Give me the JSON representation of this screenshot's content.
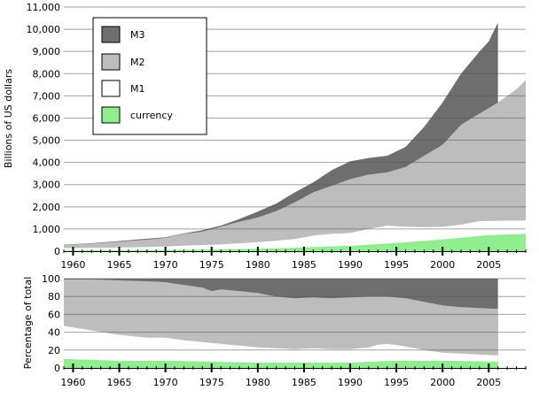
{
  "chart_data": [
    {
      "type": "area",
      "stacked": false,
      "ylabel": "Billions of US dollars",
      "xlim": [
        1959,
        2009
      ],
      "ylim": [
        0,
        11000
      ],
      "yticks": [
        0,
        1000,
        2000,
        3000,
        4000,
        5000,
        6000,
        7000,
        8000,
        9000,
        10000,
        11000
      ],
      "ytick_labels": [
        "0",
        "1,000",
        "2,000",
        "3,000",
        "4,000",
        "5,000",
        "6,000",
        "7,000",
        "8,000",
        "9,000",
        "10,000",
        "11,000"
      ],
      "xtick_labels": [
        "1960",
        "1965",
        "1970",
        "1975",
        "1980",
        "1985",
        "1990",
        "1995",
        "2000",
        "2005"
      ],
      "xticks": [
        1960,
        1965,
        1970,
        1975,
        1980,
        1985,
        1990,
        1995,
        2000,
        2005
      ],
      "grid": true,
      "legend": {
        "position": "top-left",
        "entries": [
          {
            "label": "M3",
            "color": "#6e6e6e"
          },
          {
            "label": "M2",
            "color": "#bdbdbd"
          },
          {
            "label": "M1",
            "color": "#ffffff"
          },
          {
            "label": "currency",
            "color": "#90ee90"
          }
        ]
      },
      "series": [
        {
          "name": "M3",
          "color": "#6e6e6e",
          "x": [
            1959,
            1962,
            1965,
            1968,
            1970,
            1972,
            1974,
            1976,
            1978,
            1980,
            1982,
            1984,
            1986,
            1988,
            1990,
            1992,
            1994,
            1996,
            1998,
            2000,
            2002,
            2004,
            2005,
            2006
          ],
          "values": [
            300,
            360,
            460,
            560,
            630,
            800,
            950,
            1150,
            1450,
            1780,
            2150,
            2650,
            3100,
            3650,
            4050,
            4200,
            4300,
            4700,
            5600,
            6700,
            8000,
            9000,
            9450,
            10300
          ]
        },
        {
          "name": "M2",
          "color": "#bdbdbd",
          "x": [
            1959,
            1962,
            1965,
            1968,
            1970,
            1972,
            1974,
            1976,
            1978,
            1980,
            1982,
            1984,
            1986,
            1988,
            1990,
            1992,
            1994,
            1996,
            1998,
            2000,
            2002,
            2004,
            2006,
            2008,
            2009
          ],
          "values": [
            290,
            340,
            430,
            520,
            600,
            780,
            880,
            1100,
            1330,
            1520,
            1810,
            2200,
            2650,
            2950,
            3250,
            3450,
            3550,
            3800,
            4300,
            4800,
            5700,
            6200,
            6700,
            7300,
            7700
          ]
        },
        {
          "name": "M1",
          "color": "#ffffff",
          "x": [
            1959,
            1962,
            1965,
            1968,
            1970,
            1972,
            1974,
            1976,
            1978,
            1980,
            1982,
            1984,
            1986,
            1988,
            1990,
            1992,
            1994,
            1996,
            1998,
            2000,
            2002,
            2004,
            2006,
            2008,
            2009
          ],
          "values": [
            140,
            150,
            165,
            190,
            215,
            250,
            275,
            305,
            355,
            405,
            470,
            550,
            700,
            780,
            820,
            1000,
            1150,
            1100,
            1080,
            1100,
            1200,
            1350,
            1370,
            1380,
            1380
          ]
        },
        {
          "name": "currency",
          "color": "#90ee90",
          "x": [
            1959,
            1965,
            1970,
            1975,
            1980,
            1985,
            1990,
            1995,
            2000,
            2005,
            2009
          ],
          "values": [
            30,
            40,
            50,
            75,
            110,
            170,
            245,
            370,
            530,
            720,
            780
          ]
        }
      ]
    },
    {
      "type": "area",
      "stacked": false,
      "ylabel": "Percentage of total",
      "xlim": [
        1959,
        2009
      ],
      "ylim": [
        0,
        100
      ],
      "yticks": [
        0,
        20,
        40,
        60,
        80,
        100
      ],
      "ytick_labels": [
        "0",
        "20",
        "40",
        "60",
        "80",
        "100"
      ],
      "xtick_labels": [
        "1960",
        "1965",
        "1970",
        "1975",
        "1980",
        "1985",
        "1990",
        "1995",
        "2000",
        "2005"
      ],
      "xticks": [
        1960,
        1965,
        1970,
        1975,
        1980,
        1985,
        1990,
        1995,
        2000,
        2005
      ],
      "grid": true,
      "series": [
        {
          "name": "M3",
          "color": "#6e6e6e",
          "x": [
            1959,
            2006
          ],
          "values": [
            100,
            100
          ]
        },
        {
          "name": "M2",
          "color": "#bdbdbd",
          "x": [
            1959,
            1962,
            1965,
            1968,
            1970,
            1972,
            1974,
            1975,
            1976,
            1978,
            1980,
            1982,
            1984,
            1986,
            1988,
            1990,
            1992,
            1994,
            1996,
            1998,
            2000,
            2002,
            2004,
            2006
          ],
          "values": [
            99,
            99,
            98,
            97,
            96,
            93,
            90,
            86,
            88,
            86,
            84,
            80,
            78,
            79,
            78,
            79,
            80,
            80,
            78,
            74,
            70,
            68,
            67,
            66
          ]
        },
        {
          "name": "M1",
          "color": "#ffffff",
          "x": [
            1959,
            1962,
            1965,
            1968,
            1970,
            1972,
            1974,
            1976,
            1978,
            1980,
            1982,
            1984,
            1986,
            1988,
            1990,
            1992,
            1993,
            1994,
            1996,
            1998,
            2000,
            2002,
            2004,
            2006
          ],
          "values": [
            47,
            42,
            37,
            34,
            34,
            31,
            29,
            27,
            25,
            23,
            22,
            21,
            22,
            21,
            21,
            23,
            26,
            27,
            24,
            20,
            17,
            16,
            15,
            14
          ]
        },
        {
          "name": "currency",
          "color": "#90ee90",
          "x": [
            1959,
            1962,
            1965,
            1970,
            1975,
            1980,
            1985,
            1990,
            1995,
            2000,
            2006
          ],
          "values": [
            10,
            9,
            8,
            8,
            7,
            6,
            6,
            6,
            8,
            8,
            7
          ]
        }
      ]
    }
  ]
}
